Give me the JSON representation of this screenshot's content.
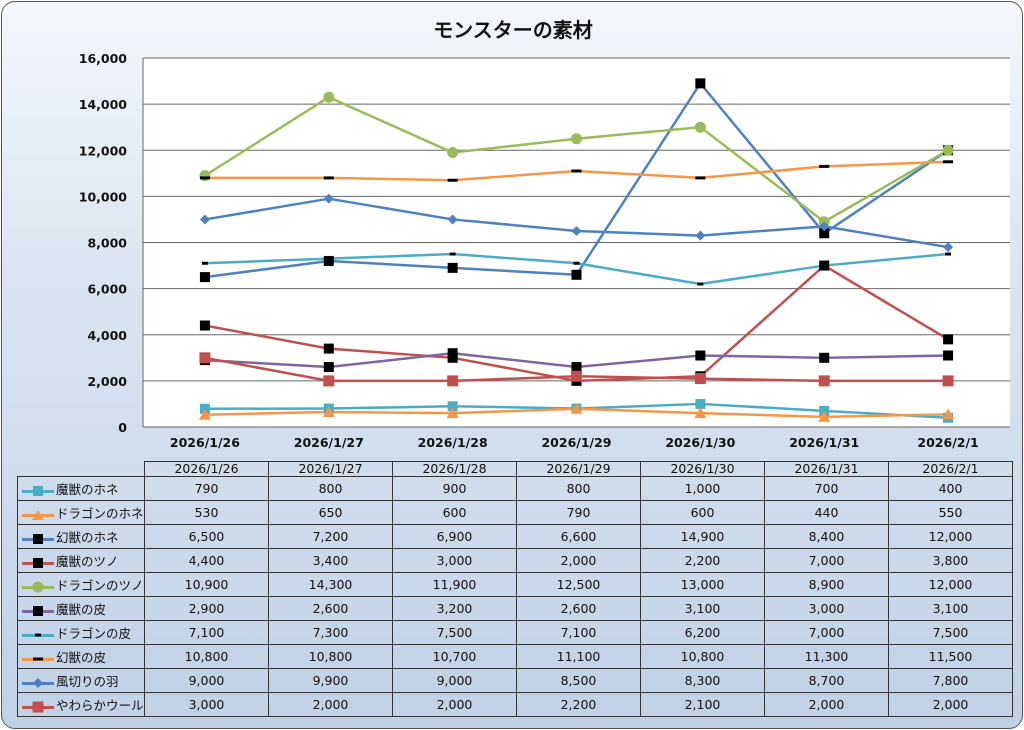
{
  "chart_data": {
    "type": "line",
    "title": "モンスターの素材",
    "categories": [
      "2026/1/26",
      "2026/1/27",
      "2026/1/28",
      "2026/1/29",
      "2026/1/30",
      "2026/1/31",
      "2026/2/1"
    ],
    "ylim": [
      0,
      16000
    ],
    "yticks": [
      0,
      2000,
      4000,
      6000,
      8000,
      10000,
      12000,
      14000,
      16000
    ],
    "ytick_labels": [
      "0",
      "2,000",
      "4,000",
      "6,000",
      "8,000",
      "10,000",
      "12,000",
      "14,000",
      "16,000"
    ],
    "grid": true,
    "legend": "data-table",
    "series": [
      {
        "name": "魔獣のホネ",
        "color": "#4bacc6",
        "marker": "square-teal",
        "values": [
          790,
          800,
          900,
          800,
          1000,
          700,
          400
        ],
        "labels": [
          "790",
          "800",
          "900",
          "800",
          "1,000",
          "700",
          "400"
        ]
      },
      {
        "name": "ドラゴンのホネ",
        "color": "#f79646",
        "marker": "triangle-orange",
        "values": [
          530,
          650,
          600,
          790,
          600,
          440,
          550
        ],
        "labels": [
          "530",
          "650",
          "600",
          "790",
          "600",
          "440",
          "550"
        ]
      },
      {
        "name": "幻獣のホネ",
        "color": "#4f81bd",
        "marker": "square-black",
        "values": [
          6500,
          7200,
          6900,
          6600,
          14900,
          8400,
          12000
        ],
        "labels": [
          "6,500",
          "7,200",
          "6,900",
          "6,600",
          "14,900",
          "8,400",
          "12,000"
        ]
      },
      {
        "name": "魔獣のツノ",
        "color": "#c0504d",
        "marker": "square-black",
        "values": [
          4400,
          3400,
          3000,
          2000,
          2200,
          7000,
          3800
        ],
        "labels": [
          "4,400",
          "3,400",
          "3,000",
          "2,000",
          "2,200",
          "7,000",
          "3,800"
        ]
      },
      {
        "name": "ドラゴンのツノ",
        "color": "#9bbb59",
        "marker": "circle-green",
        "values": [
          10900,
          14300,
          11900,
          12500,
          13000,
          8900,
          12000
        ],
        "labels": [
          "10,900",
          "14,300",
          "11,900",
          "12,500",
          "13,000",
          "8,900",
          "12,000"
        ]
      },
      {
        "name": "魔獣の皮",
        "color": "#8064a2",
        "marker": "square-black",
        "values": [
          2900,
          2600,
          3200,
          2600,
          3100,
          3000,
          3100
        ],
        "labels": [
          "2,900",
          "2,600",
          "3,200",
          "2,600",
          "3,100",
          "3,000",
          "3,100"
        ]
      },
      {
        "name": "ドラゴンの皮",
        "color": "#4bacc6",
        "marker": "dash-small",
        "values": [
          7100,
          7300,
          7500,
          7100,
          6200,
          7000,
          7500
        ],
        "labels": [
          "7,100",
          "7,300",
          "7,500",
          "7,100",
          "6,200",
          "7,000",
          "7,500"
        ]
      },
      {
        "name": "幻獣の皮",
        "color": "#f79646",
        "marker": "dash-black",
        "values": [
          10800,
          10800,
          10700,
          11100,
          10800,
          11300,
          11500
        ],
        "labels": [
          "10,800",
          "10,800",
          "10,700",
          "11,100",
          "10,800",
          "11,300",
          "11,500"
        ]
      },
      {
        "name": "風切りの羽",
        "color": "#4f81bd",
        "marker": "diamond-blue",
        "values": [
          9000,
          9900,
          9000,
          8500,
          8300,
          8700,
          7800
        ],
        "labels": [
          "9,000",
          "9,900",
          "9,000",
          "8,500",
          "8,300",
          "8,700",
          "7,800"
        ]
      },
      {
        "name": "やわらかウール",
        "color": "#c0504d",
        "marker": "square-red",
        "values": [
          3000,
          2000,
          2000,
          2200,
          2100,
          2000,
          2000
        ],
        "labels": [
          "3,000",
          "2,000",
          "2,000",
          "2,200",
          "2,100",
          "2,000",
          "2,000"
        ]
      }
    ]
  }
}
